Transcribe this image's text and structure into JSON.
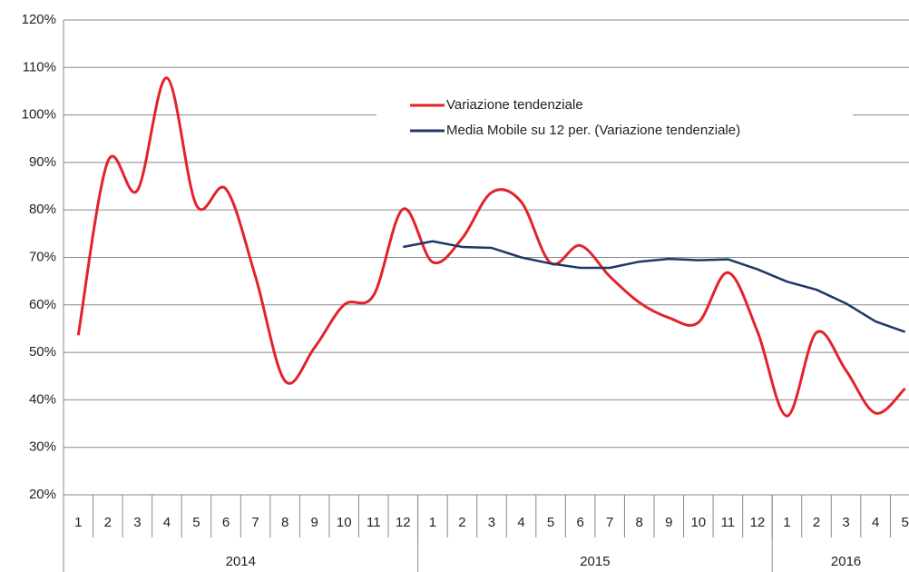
{
  "chart_data": {
    "type": "line",
    "categories": [
      "1",
      "2",
      "3",
      "4",
      "5",
      "6",
      "7",
      "8",
      "9",
      "10",
      "11",
      "12",
      "1",
      "2",
      "3",
      "4",
      "5",
      "6",
      "7",
      "8",
      "9",
      "10",
      "11",
      "12",
      "1",
      "2",
      "3",
      "4",
      "5"
    ],
    "x_groups": [
      {
        "label": "2014",
        "span": 12
      },
      {
        "label": "2015",
        "span": 12
      },
      {
        "label": "2016",
        "span": 5
      }
    ],
    "series": [
      {
        "name": "Variazione tendenziale",
        "color": "#e3222b",
        "smooth": true,
        "values": [
          53.6,
          90.2,
          84.1,
          107.8,
          81,
          84.4,
          66,
          44,
          51,
          60,
          62,
          80.2,
          69,
          74,
          83.7,
          81.7,
          68.8,
          72.5,
          66,
          60.5,
          57.3,
          56.3,
          66.8,
          54.4,
          36.6,
          54.2,
          46.2,
          37.2,
          42.4
        ]
      },
      {
        "name": "Media Mobile su 12 per. (Variazione tendenziale)",
        "color": "#1f3864",
        "smooth": false,
        "values": [
          null,
          null,
          null,
          null,
          null,
          null,
          null,
          null,
          null,
          null,
          null,
          72.2,
          73.4,
          72.2,
          72,
          70,
          68.7,
          67.8,
          67.8,
          69.1,
          69.7,
          69.4,
          69.6,
          67.5,
          64.9,
          63.2,
          60.3,
          56.5,
          54.3
        ]
      }
    ],
    "ylim": [
      20,
      120
    ],
    "yticks": [
      {
        "value": 20,
        "label": "20%"
      },
      {
        "value": 30,
        "label": "30%"
      },
      {
        "value": 40,
        "label": "40%"
      },
      {
        "value": 50,
        "label": "50%"
      },
      {
        "value": 60,
        "label": "60%"
      },
      {
        "value": 70,
        "label": "70%"
      },
      {
        "value": 80,
        "label": "80%"
      },
      {
        "value": 90,
        "label": "90%"
      },
      {
        "value": 100,
        "label": "100%"
      },
      {
        "value": 110,
        "label": "110%"
      },
      {
        "value": 120,
        "label": "120%"
      }
    ],
    "grid": true
  }
}
